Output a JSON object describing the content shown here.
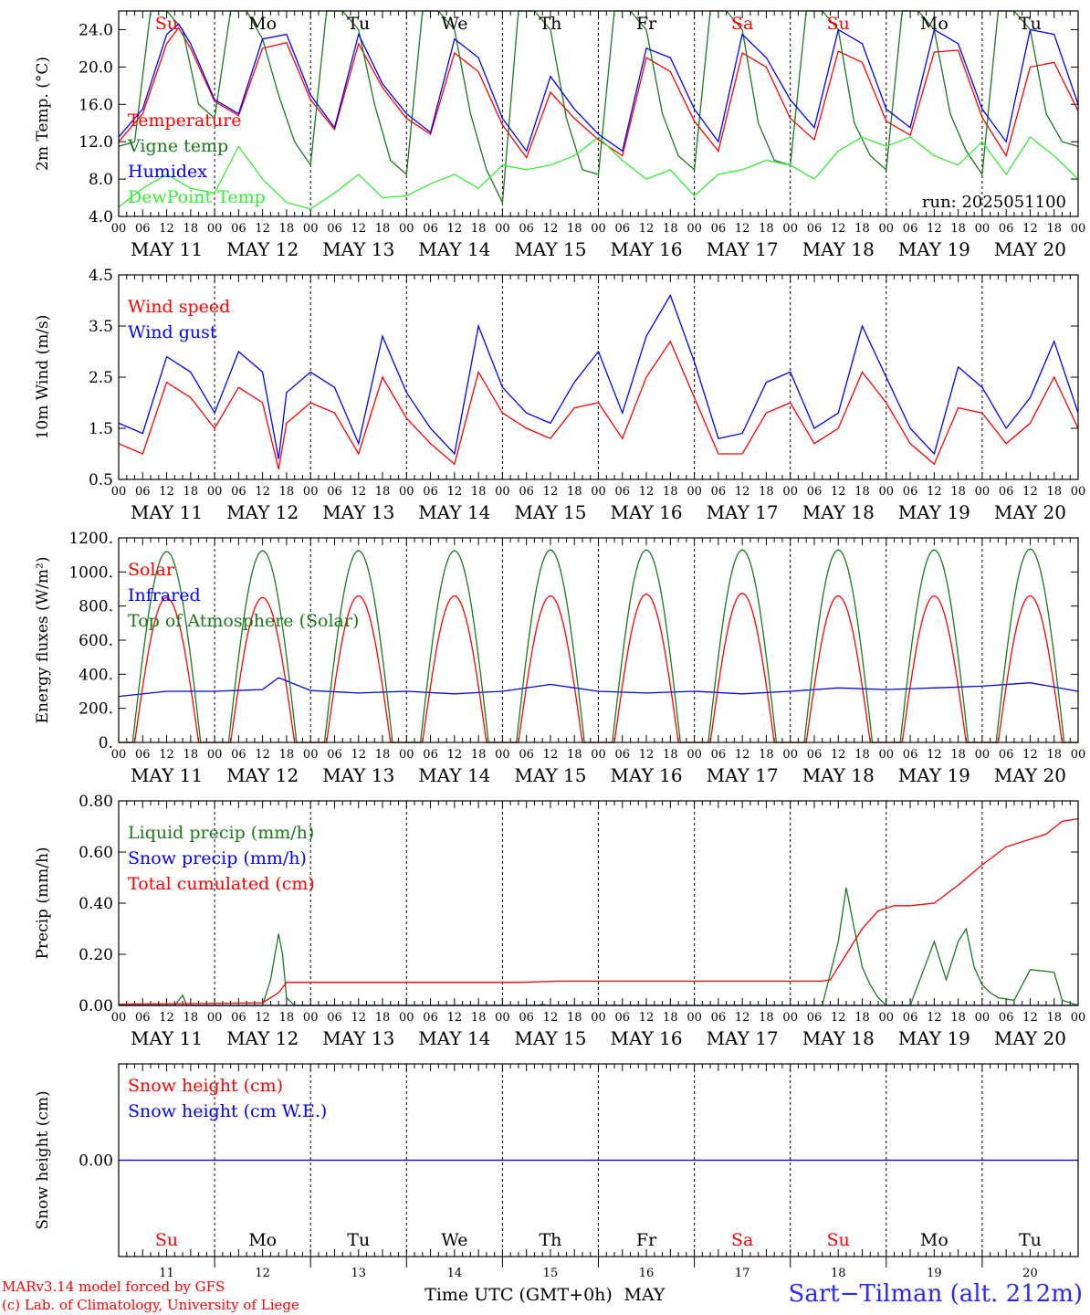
{
  "chart_data": {
    "type": "line",
    "run": "run: 2025051100",
    "time_axis": {
      "tick_hours": [
        "00",
        "06",
        "12",
        "18"
      ],
      "dates": [
        "MAY 11",
        "MAY 12",
        "MAY 13",
        "MAY 14",
        "MAY 15",
        "MAY 16",
        "MAY 17",
        "MAY 18",
        "MAY 19",
        "MAY 20"
      ],
      "weekdays": [
        "Su",
        "Mo",
        "Tu",
        "We",
        "Th",
        "Fr",
        "Sa",
        "Su",
        "Mo",
        "Tu"
      ],
      "weekend_color": "#ff0000",
      "weekday_color": "#000000",
      "day_numbers": [
        "11",
        "12",
        "13",
        "14",
        "15",
        "16",
        "17",
        "18",
        "19",
        "20"
      ],
      "month": "MAY",
      "xlabel": "Time UTC (GMT+0h)"
    },
    "panels": [
      {
        "id": "temperature",
        "ylabel": "2m Temp. (°C)",
        "ylim": [
          4.0,
          26.0
        ],
        "yticks": [
          "4.0",
          "8.0",
          "12.0",
          "16.0",
          "20.0",
          "24.0"
        ],
        "ytick_values": [
          4,
          8,
          12,
          16,
          20,
          24
        ],
        "series": [
          {
            "name": "Temperature",
            "color": "#ff0000",
            "x_hours": [
              0,
              6,
              12,
              15,
              18,
              24,
              30,
              36,
              42,
              48,
              54,
              60,
              66,
              72,
              78,
              84,
              90,
              96,
              102,
              108,
              114,
              120,
              126,
              132,
              138,
              144,
              150,
              156,
              162,
              168,
              174,
              180,
              186,
              192,
              198,
              204,
              210,
              216,
              222,
              228,
              234,
              240
            ],
            "values": [
              12.0,
              15.0,
              22.5,
              24.2,
              22.0,
              16.3,
              14.8,
              22.0,
              22.6,
              16.5,
              13.3,
              22.5,
              17.8,
              14.5,
              12.8,
              21.5,
              19.5,
              13.8,
              10.3,
              17.3,
              14.5,
              12.2,
              10.5,
              21.0,
              19.5,
              14.2,
              11.0,
              21.5,
              20.0,
              14.5,
              12.2,
              21.7,
              20.5,
              14.2,
              12.7,
              21.6,
              21.8,
              14.6,
              10.5,
              20.0,
              20.5,
              15.3
            ]
          },
          {
            "name": "Vigne temp",
            "color": "#1a7a1a",
            "x_hours": [
              0,
              4,
              8,
              12,
              16,
              20,
              24,
              28,
              32,
              36,
              40,
              44,
              48,
              52,
              56,
              60,
              64,
              68,
              72,
              76,
              80,
              84,
              88,
              92,
              96,
              100,
              104,
              108,
              112,
              116,
              120,
              124,
              128,
              132,
              136,
              140,
              144,
              148,
              152,
              156,
              160,
              164,
              168,
              172,
              176,
              180,
              184,
              188,
              192,
              196,
              200,
              204,
              208,
              212,
              216,
              220,
              224,
              228,
              232,
              236,
              240
            ],
            "values": [
              11.5,
              12.0,
              26.0,
              26.0,
              24.0,
              16.0,
              14.5,
              26.0,
              26.0,
              23.0,
              17.0,
              12.0,
              9.5,
              26.0,
              26.0,
              24.0,
              16.0,
              10.0,
              8.5,
              26.0,
              26.0,
              24.0,
              15.0,
              9.0,
              5.5,
              26.0,
              26.0,
              24.0,
              14.5,
              9.0,
              8.5,
              26.0,
              26.0,
              24.0,
              15.0,
              10.5,
              9.0,
              26.0,
              26.0,
              24.0,
              14.0,
              10.0,
              9.5,
              26.0,
              26.0,
              24.0,
              14.0,
              10.5,
              9.0,
              26.0,
              26.0,
              24.0,
              15.0,
              11.0,
              8.5,
              26.0,
              26.0,
              24.0,
              15.0,
              12.0,
              11.5
            ]
          },
          {
            "name": "Humidex",
            "color": "#0000ff",
            "x_hours": [
              0,
              6,
              12,
              15,
              18,
              24,
              30,
              36,
              42,
              48,
              54,
              60,
              66,
              72,
              78,
              84,
              90,
              96,
              102,
              108,
              114,
              120,
              126,
              132,
              138,
              144,
              150,
              156,
              162,
              168,
              174,
              180,
              186,
              192,
              198,
              204,
              210,
              216,
              222,
              228,
              234,
              240
            ],
            "values": [
              12.5,
              15.5,
              23.5,
              24.6,
              22.5,
              16.5,
              15.0,
              23.0,
              23.5,
              17.0,
              13.5,
              23.5,
              18.2,
              15.0,
              13.0,
              23.0,
              21.0,
              14.5,
              11.0,
              19.0,
              15.5,
              12.8,
              11.0,
              22.0,
              21.0,
              15.5,
              12.0,
              23.5,
              21.0,
              16.5,
              13.5,
              24.0,
              22.5,
              15.5,
              13.5,
              24.0,
              22.5,
              15.5,
              12.0,
              24.0,
              23.5,
              16.0
            ]
          },
          {
            "name": "DewPoint Temp",
            "color": "#33ee33",
            "x_hours": [
              0,
              6,
              12,
              18,
              24,
              30,
              36,
              42,
              48,
              54,
              60,
              66,
              72,
              78,
              84,
              90,
              96,
              102,
              108,
              114,
              120,
              126,
              132,
              138,
              144,
              150,
              156,
              162,
              168,
              174,
              180,
              186,
              192,
              198,
              204,
              210,
              216,
              222,
              228,
              234,
              240
            ],
            "values": [
              5.0,
              7.0,
              8.5,
              7.0,
              6.5,
              11.5,
              8.0,
              5.5,
              4.8,
              6.5,
              8.5,
              6.0,
              6.2,
              7.5,
              8.5,
              7.0,
              9.5,
              9.0,
              9.5,
              10.5,
              12.5,
              10.0,
              8.0,
              9.0,
              6.2,
              8.5,
              9.0,
              10.0,
              9.5,
              8.0,
              11.0,
              12.5,
              11.5,
              12.5,
              10.5,
              9.5,
              12.0,
              8.5,
              12.5,
              10.5,
              8.0
            ]
          }
        ]
      },
      {
        "id": "wind",
        "ylabel": "10m Wind (m/s)",
        "ylim": [
          0.5,
          4.5
        ],
        "yticks": [
          "0.5",
          "1.5",
          "2.5",
          "3.5",
          "4.5"
        ],
        "ytick_values": [
          0.5,
          1.5,
          2.5,
          3.5,
          4.5
        ],
        "series": [
          {
            "name": "Wind speed",
            "color": "#ff0000",
            "x_hours": [
              0,
              6,
              12,
              18,
              24,
              30,
              36,
              40,
              42,
              48,
              54,
              60,
              66,
              72,
              78,
              84,
              90,
              96,
              102,
              108,
              114,
              120,
              126,
              132,
              138,
              144,
              150,
              156,
              162,
              168,
              174,
              180,
              186,
              192,
              198,
              204,
              210,
              216,
              222,
              228,
              234,
              240
            ],
            "values": [
              1.2,
              1.0,
              2.4,
              2.1,
              1.5,
              2.3,
              2.0,
              0.7,
              1.6,
              2.0,
              1.8,
              1.0,
              2.5,
              1.7,
              1.2,
              0.8,
              2.6,
              1.8,
              1.5,
              1.3,
              1.9,
              2.0,
              1.3,
              2.5,
              3.2,
              2.1,
              1.0,
              1.0,
              1.8,
              2.0,
              1.2,
              1.5,
              2.6,
              2.0,
              1.2,
              0.8,
              1.9,
              1.8,
              1.2,
              1.6,
              2.5,
              1.5
            ]
          },
          {
            "name": "Wind gust",
            "color": "#0000ff",
            "x_hours": [
              0,
              6,
              12,
              18,
              24,
              30,
              36,
              40,
              42,
              48,
              54,
              60,
              66,
              72,
              78,
              84,
              90,
              96,
              102,
              108,
              114,
              120,
              126,
              132,
              138,
              144,
              150,
              156,
              162,
              168,
              174,
              180,
              186,
              192,
              198,
              204,
              210,
              216,
              222,
              228,
              234,
              240
            ],
            "values": [
              1.6,
              1.4,
              2.9,
              2.6,
              1.8,
              3.0,
              2.6,
              0.9,
              2.2,
              2.6,
              2.3,
              1.2,
              3.3,
              2.2,
              1.5,
              1.0,
              3.5,
              2.3,
              1.8,
              1.6,
              2.4,
              3.0,
              1.8,
              3.3,
              4.1,
              2.8,
              1.3,
              1.4,
              2.4,
              2.6,
              1.5,
              1.8,
              3.5,
              2.5,
              1.5,
              1.0,
              2.7,
              2.3,
              1.5,
              2.1,
              3.2,
              1.8
            ]
          }
        ]
      },
      {
        "id": "energy",
        "ylabel": "Energy fluxes (W/m²)",
        "ylim": [
          0,
          1200
        ],
        "yticks": [
          "0.",
          "200.",
          "400.",
          "600.",
          "800.",
          "1000.",
          "1200."
        ],
        "ytick_values": [
          0,
          200,
          400,
          600,
          800,
          1000,
          1200
        ],
        "series": [
          {
            "name": "Solar",
            "color": "#ff0000",
            "diurnal_peaks": [
              850,
              850,
              860,
              860,
              860,
              870,
              875,
              860,
              860,
              860
            ],
            "day_hours": [
              4,
              20
            ]
          },
          {
            "name": "Infrared",
            "color": "#0000ff",
            "x_hours": [
              0,
              12,
              24,
              36,
              40,
              48,
              60,
              72,
              84,
              96,
              108,
              120,
              132,
              144,
              156,
              168,
              180,
              192,
              204,
              216,
              228,
              240
            ],
            "values": [
              270,
              300,
              300,
              310,
              380,
              305,
              290,
              300,
              285,
              300,
              340,
              300,
              290,
              300,
              285,
              300,
              320,
              310,
              320,
              330,
              350,
              300
            ]
          },
          {
            "name": "Top of Atmosphere (Solar)",
            "color": "#1a7a1a",
            "diurnal_peaks": [
              1120,
              1125,
              1125,
              1125,
              1130,
              1130,
              1130,
              1130,
              1130,
              1135
            ],
            "day_hours": [
              3.5,
              20.5
            ]
          }
        ]
      },
      {
        "id": "precip",
        "ylabel": "Precip (mm/h)",
        "ylim": [
          0.0,
          0.8
        ],
        "yticks": [
          "0.00",
          "0.20",
          "0.40",
          "0.60",
          "0.80"
        ],
        "ytick_values": [
          0,
          0.2,
          0.4,
          0.6,
          0.8
        ],
        "series": [
          {
            "name": "Liquid precip (mm/h)",
            "color": "#1a7a1a",
            "x_hours": [
              0,
              14,
              16,
              17,
              36,
              38,
              40,
              41,
              42,
              44,
              105,
              106,
              107,
              176,
              180,
              182,
              184,
              186,
              188,
              190,
              192,
              198,
              204,
              207,
              210,
              212,
              214,
              216,
              218,
              220,
              224,
              228,
              234,
              236,
              240
            ],
            "values": [
              0,
              0,
              0.04,
              0,
              0,
              0.1,
              0.28,
              0.2,
              0.03,
              0,
              0,
              0.005,
              0,
              0,
              0.25,
              0.46,
              0.3,
              0.15,
              0.08,
              0.03,
              0,
              0,
              0.25,
              0.1,
              0.25,
              0.3,
              0.15,
              0.08,
              0.05,
              0.03,
              0.02,
              0.14,
              0.13,
              0.02,
              0
            ]
          },
          {
            "name": "Snow precip (mm/h)",
            "color": "#0000ff",
            "x_hours": [
              0,
              240
            ],
            "values": [
              0,
              0
            ]
          },
          {
            "name": "Total cumulated (cm)",
            "color": "#ff0000",
            "x_hours": [
              0,
              36,
              40,
              42,
              44,
              100,
              110,
              176,
              178,
              182,
              186,
              190,
              194,
              198,
              204,
              210,
              216,
              222,
              228,
              232,
              236,
              240
            ],
            "values": [
              0.005,
              0.01,
              0.05,
              0.09,
              0.09,
              0.09,
              0.095,
              0.095,
              0.1,
              0.2,
              0.3,
              0.37,
              0.39,
              0.39,
              0.4,
              0.47,
              0.55,
              0.62,
              0.65,
              0.67,
              0.72,
              0.73
            ]
          }
        ]
      },
      {
        "id": "snow",
        "ylabel": "Snow height (cm)",
        "ylim": [
          -1,
          1
        ],
        "yticks": [
          "0.00"
        ],
        "ytick_values": [
          0
        ],
        "series": [
          {
            "name": "Snow height (cm)",
            "color": "#ff0000",
            "x_hours": [
              0,
              240
            ],
            "values": [
              0,
              0
            ]
          },
          {
            "name": "Snow height (cm W.E.)",
            "color": "#0000ff",
            "x_hours": [
              0,
              240
            ],
            "values": [
              0,
              0
            ]
          }
        ]
      }
    ]
  },
  "footer": {
    "model": "MARv3.14 model forced by GFS",
    "lab": "(c) Lab. of Climatology, University of Liege",
    "station": "Sart−Tilman (alt. 212m)"
  }
}
